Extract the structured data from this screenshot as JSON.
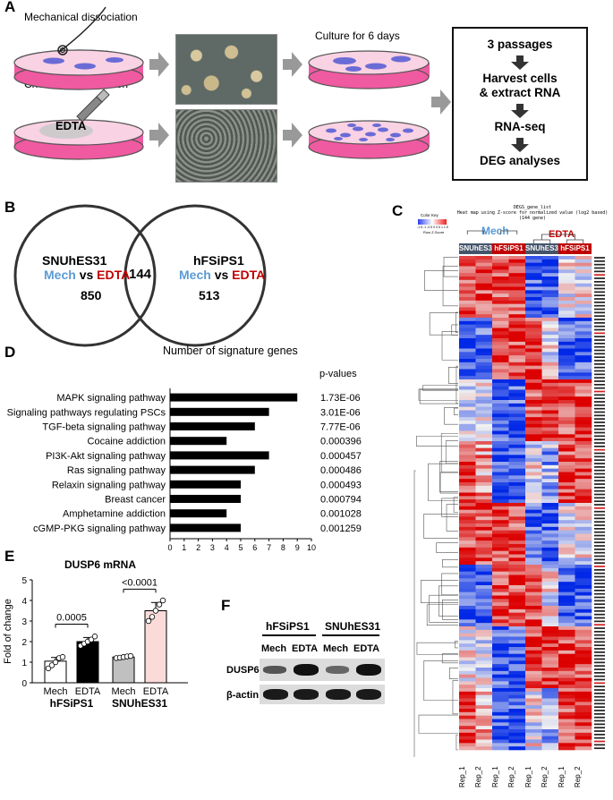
{
  "panel_labels": {
    "A": "A",
    "B": "B",
    "C": "C",
    "D": "D",
    "E": "E",
    "F": "F"
  },
  "panel_a": {
    "mechanical_label": "Mechanical dissociation",
    "chemical_label": "Chemical dissociation",
    "edta_label": "EDTA",
    "culture_label": "Culture for 6 days",
    "steps": [
      "3 passages",
      "Harvest cells",
      "& extract RNA",
      "RNA-seq",
      "DEG analyses"
    ]
  },
  "panel_b": {
    "left_title": "SNUhES31",
    "right_title": "hFSiPS1",
    "mech": "Mech",
    "vs": "vs",
    "edta": "EDTA",
    "left_count": "850",
    "overlap_count": "144",
    "right_count": "513",
    "colors": {
      "mech": "#5b9bd5",
      "edta": "#c00000"
    }
  },
  "panel_c": {
    "title_line1": "DEGS_gene_list",
    "title_line2": "Heat map using Z-score for normalized value (log2 based)",
    "title_line3": "(144 gene)",
    "color_key_title": "Color Key",
    "color_key_ticks": [
      "-1.5",
      "-1",
      "-0.5",
      "0",
      "0.5",
      "1",
      "1.5"
    ],
    "color_key_sub": "Row Z-Score",
    "group_mech": "Mech",
    "group_edta": "EDTA",
    "subgroups": [
      "SNUhES31",
      "hFSiPS1",
      "SNUhES31",
      "hFSiPS1"
    ],
    "column_labels": [
      "Rep_1",
      "Rep_2",
      "Rep_1",
      "Rep_2",
      "Rep_1",
      "Rep_2",
      "Rep_1",
      "Rep_2"
    ]
  },
  "panel_e": {
    "chart_data": {
      "type": "bar",
      "title": "DUSP6  mRNA",
      "ylabel": "Fold of change",
      "ylim": [
        0,
        5
      ],
      "yticks": [
        "0",
        "1",
        "2",
        "3",
        "4",
        "5"
      ],
      "categories": [
        "Mech",
        "EDTA",
        "Mech",
        "EDTA"
      ],
      "groups": [
        "hFSiPS1",
        "SNUhES31"
      ],
      "values": [
        1.05,
        2.0,
        1.25,
        3.5
      ],
      "errors": [
        0.18,
        0.2,
        0.05,
        0.4
      ],
      "points": [
        [
          0.7,
          0.85,
          1.0,
          1.2,
          1.25
        ],
        [
          1.8,
          1.9,
          2.0,
          2.1,
          2.25
        ],
        [
          1.2,
          1.22,
          1.25,
          1.28,
          1.3
        ],
        [
          3.0,
          3.2,
          3.5,
          3.8,
          4.0
        ]
      ],
      "bar_colors": [
        "#ffffff",
        "#000000",
        "#c0c0c0",
        "#fadbd8"
      ],
      "annotations": [
        {
          "between": [
            "hFSiPS1 Mech",
            "hFSiPS1 EDTA"
          ],
          "text": "0.0005"
        },
        {
          "between": [
            "SNUhES31 Mech",
            "SNUhES31 EDTA"
          ],
          "text": "<0.0001"
        }
      ]
    }
  },
  "panel_d": {
    "chart_data": {
      "type": "bar",
      "orientation": "horizontal",
      "title": "Number of signature genes",
      "pvalue_header": "p-values",
      "categories": [
        "MAPK signaling pathway",
        "Signaling pathways regulating PSCs",
        "TGF-beta signaling pathway",
        "Cocaine addiction",
        "PI3K-Akt signaling pathway",
        "Ras signaling pathway",
        "Relaxin signaling pathway",
        "Breast cancer",
        "Amphetamine addiction",
        "cGMP-PKG signaling pathway"
      ],
      "values": [
        9,
        7,
        6,
        4,
        7,
        6,
        5,
        5,
        4,
        5
      ],
      "pvalues": [
        "1.73E-06",
        "3.01E-06",
        "7.77E-06",
        "0.000396",
        "0.000457",
        "0.000486",
        "0.000493",
        "0.000794",
        "0.001028",
        "0.001259"
      ],
      "xlim": [
        0,
        10
      ],
      "xticks": [
        "0",
        "1",
        "2",
        "3",
        "4",
        "5",
        "6",
        "7",
        "8",
        "9",
        "10"
      ]
    }
  },
  "panel_f": {
    "group1": "hFSiPS1",
    "group2": "SNUhES31",
    "lanes": [
      "Mech",
      "EDTA",
      "Mech",
      "EDTA"
    ],
    "row1": "DUSP6",
    "row2": "β-actin"
  }
}
